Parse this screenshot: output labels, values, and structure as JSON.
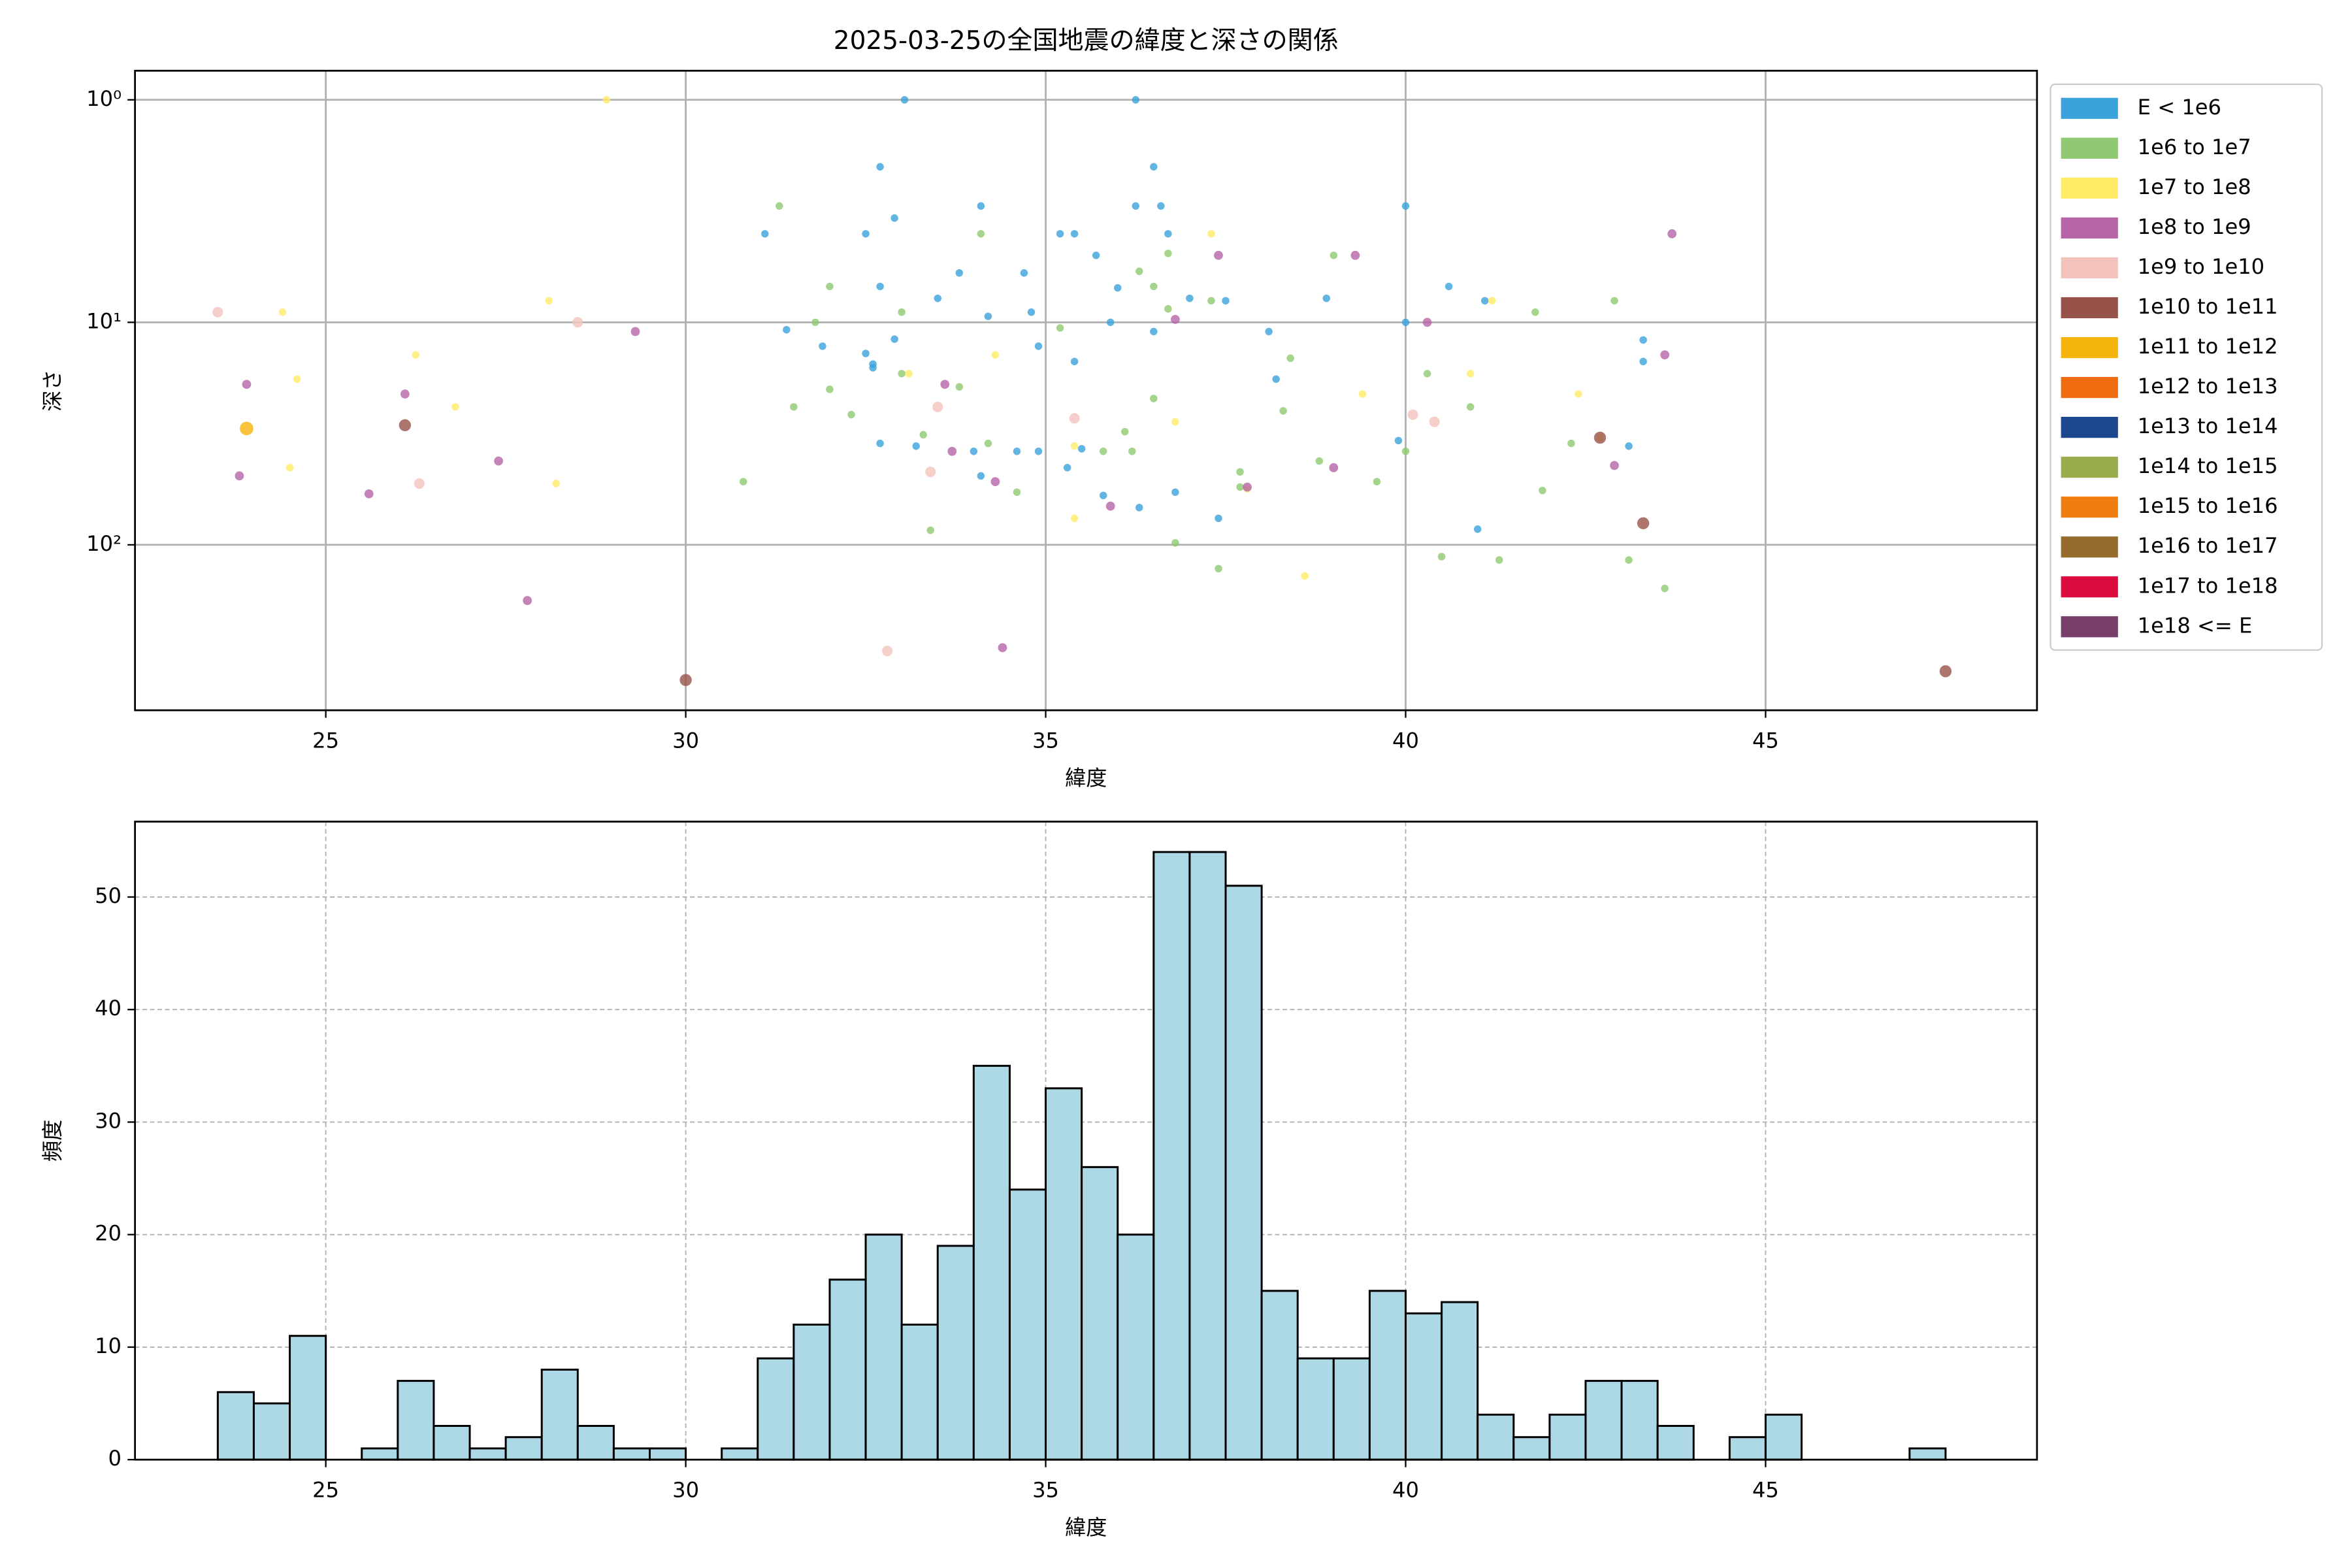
{
  "chart_data": [
    {
      "type": "scatter",
      "title": "2025-03-25の全国地震の緯度と深さの関係",
      "xlabel": "緯度",
      "ylabel": "深さ",
      "yscale": "log",
      "y_inverted": true,
      "grid": true,
      "legend": "outside-upper-right",
      "xlim": [
        22.35,
        48.77
      ],
      "ylim": [
        0.74,
        554
      ],
      "xticks": [
        25,
        30,
        35,
        40,
        45
      ],
      "yticks": [
        {
          "value": 1,
          "label": "10⁰"
        },
        {
          "value": 10,
          "label": "10¹"
        },
        {
          "value": 100,
          "label": "10²"
        }
      ],
      "series": [
        {
          "name": "E < 1e6",
          "color": "#3ba3dc",
          "x": [
            33.04,
            36.25,
            32.7,
            36.5,
            32.9,
            34.1,
            36.25,
            36.6,
            31.1,
            32.5,
            35.2,
            35.4,
            36.7,
            32.7,
            33.8,
            34.7,
            35.7,
            36.0,
            31.4,
            31.9,
            32.5,
            32.6,
            32.9,
            33.5,
            34.2,
            34.8,
            34.9,
            35.4,
            35.9,
            36.5,
            37.0,
            37.5,
            38.1,
            38.2,
            38.9,
            40.0,
            40.0,
            40.6,
            41.1,
            43.3,
            43.3,
            32.7,
            33.2,
            34.0,
            34.6,
            34.9,
            35.3,
            35.8,
            36.3,
            36.8,
            37.4,
            39.9,
            41.0,
            43.1,
            34.1,
            35.5,
            32.6
          ],
          "values": [
            1,
            1,
            2,
            2,
            3.4,
            3,
            3,
            3,
            4,
            4,
            4,
            4,
            4,
            6.9,
            6,
            6,
            5,
            7,
            10.8,
            12.8,
            13.8,
            15.4,
            11.9,
            7.8,
            9.4,
            9,
            12.8,
            15,
            10,
            11,
            7.8,
            8,
            11,
            18,
            7.8,
            3,
            10,
            6.9,
            8,
            12,
            15,
            35,
            36,
            38,
            38,
            38,
            45,
            60,
            68,
            58,
            76,
            34,
            85,
            36,
            49,
            37,
            16
          ]
        },
        {
          "name": "1e6 to 1e7",
          "color": "#8fc971",
          "x": [
            31.3,
            34.1,
            36.7,
            39.0,
            32.0,
            36.3,
            31.8,
            33.0,
            35.2,
            36.7,
            36.5,
            37.3,
            31.5,
            32.0,
            32.3,
            33.3,
            33.8,
            34.2,
            34.6,
            30.8,
            33.4,
            35.8,
            36.2,
            36.5,
            36.8,
            37.4,
            37.7,
            38.3,
            38.8,
            39.6,
            40.0,
            40.5,
            41.3,
            41.9,
            42.3,
            42.9,
            43.1,
            43.6,
            41.8,
            40.3,
            40.9,
            38.4,
            37.7,
            33.0,
            36.1
          ],
          "values": [
            3,
            4,
            4.9,
            5,
            6.9,
            5.9,
            10,
            9,
            10.6,
            8.7,
            6.9,
            8,
            24,
            20,
            26,
            32,
            19.5,
            35,
            58,
            52,
            86,
            38,
            38,
            22,
            98,
            128,
            55,
            25,
            42,
            52,
            38,
            113,
            117,
            57,
            35,
            8,
            117,
            157,
            9,
            17,
            24,
            14.5,
            47,
            17,
            31
          ]
        },
        {
          "name": "1e7 to 1e8",
          "color": "#ffeb66",
          "x": [
            28.9,
            24.4,
            28.1,
            24.6,
            26.25,
            26.8,
            28.2,
            24.5,
            37.3,
            35.4,
            35.4,
            34.3,
            39.4,
            41.2,
            42.4,
            38.6,
            37.8,
            42.7,
            40.9,
            33.1,
            36.8
          ],
          "values": [
            1,
            9,
            8,
            18,
            14,
            24,
            53,
            45,
            4,
            36,
            76,
            14,
            21,
            8,
            21,
            138,
            56,
            33,
            17,
            17,
            28
          ]
        },
        {
          "name": "1e8 to 1e9",
          "color": "#b565a7",
          "x": [
            23.9,
            23.8,
            25.6,
            26.1,
            27.4,
            27.8,
            29.3,
            33.6,
            33.7,
            34.3,
            34.4,
            35.9,
            36.8,
            37.4,
            39.3,
            39.0,
            40.3,
            42.9,
            43.6,
            43.7,
            37.8
          ],
          "values": [
            19,
            49,
            59,
            21,
            42,
            178,
            11,
            19,
            38,
            52,
            290,
            67,
            9.7,
            5,
            5,
            45,
            10,
            44,
            14,
            4,
            55
          ]
        },
        {
          "name": "1e9 to 1e10",
          "color": "#f4c2bd",
          "x": [
            23.5,
            28.5,
            26.3,
            33.5,
            32.8,
            35.4,
            40.1,
            40.4,
            33.4
          ],
          "values": [
            9,
            10,
            53,
            24,
            300,
            27,
            26,
            28,
            47
          ]
        },
        {
          "name": "1e10 to 1e11",
          "color": "#97524a",
          "x": [
            26.1,
            30.0,
            42.7,
            43.3,
            47.5
          ],
          "values": [
            29,
            405,
            33,
            80,
            370
          ]
        },
        {
          "name": "1e11 to 1e12",
          "color": "#f5b40b",
          "x": [
            23.9
          ],
          "values": [
            30
          ]
        },
        {
          "name": "1e12 to 1e13",
          "color": "#ee6b0f",
          "x": [],
          "values": []
        },
        {
          "name": "1e13 to 1e14",
          "color": "#1c4890",
          "x": [],
          "values": []
        },
        {
          "name": "1e14 to 1e15",
          "color": "#9aad4e",
          "x": [],
          "values": []
        },
        {
          "name": "1e15 to 1e16",
          "color": "#ef7d0f",
          "x": [],
          "values": []
        },
        {
          "name": "1e16 to 1e17",
          "color": "#956c2c",
          "x": [],
          "values": []
        },
        {
          "name": "1e17 to 1e18",
          "color": "#dc0b3e",
          "x": [],
          "values": []
        },
        {
          "name": "1e18 <= E",
          "color": "#773f69",
          "x": [],
          "values": []
        }
      ]
    },
    {
      "type": "histogram",
      "xlabel": "緯度",
      "ylabel": "頻度",
      "grid": true,
      "color": "#add8e6",
      "edgecolor": "#000000",
      "xlim": [
        22.35,
        48.77
      ],
      "ylim": [
        0,
        56.7
      ],
      "xticks": [
        25,
        30,
        35,
        40,
        45
      ],
      "yticks": [
        0,
        10,
        20,
        30,
        40,
        50
      ],
      "bins": [
        23.5,
        24,
        24.5,
        25,
        25.5,
        26,
        26.5,
        27,
        27.5,
        28,
        28.5,
        29,
        29.5,
        30,
        30.5,
        31,
        31.5,
        32,
        32.5,
        33,
        33.5,
        34,
        34.5,
        35,
        35.5,
        36,
        36.5,
        37,
        37.5,
        38,
        38.5,
        39,
        39.5,
        40,
        40.5,
        41,
        41.5,
        42,
        42.5,
        43,
        43.5,
        44,
        44.5,
        45,
        45.5,
        46,
        46.5,
        47,
        47.5
      ],
      "counts": [
        6,
        5,
        11,
        0,
        1,
        7,
        3,
        1,
        2,
        8,
        3,
        1,
        1,
        0,
        1,
        9,
        12,
        16,
        20,
        12,
        19,
        35,
        24,
        33,
        26,
        20,
        54,
        54,
        51,
        15,
        9,
        9,
        15,
        13,
        14,
        4,
        2,
        4,
        7,
        7,
        3,
        0,
        2,
        4,
        0,
        0,
        0,
        1
      ]
    }
  ]
}
